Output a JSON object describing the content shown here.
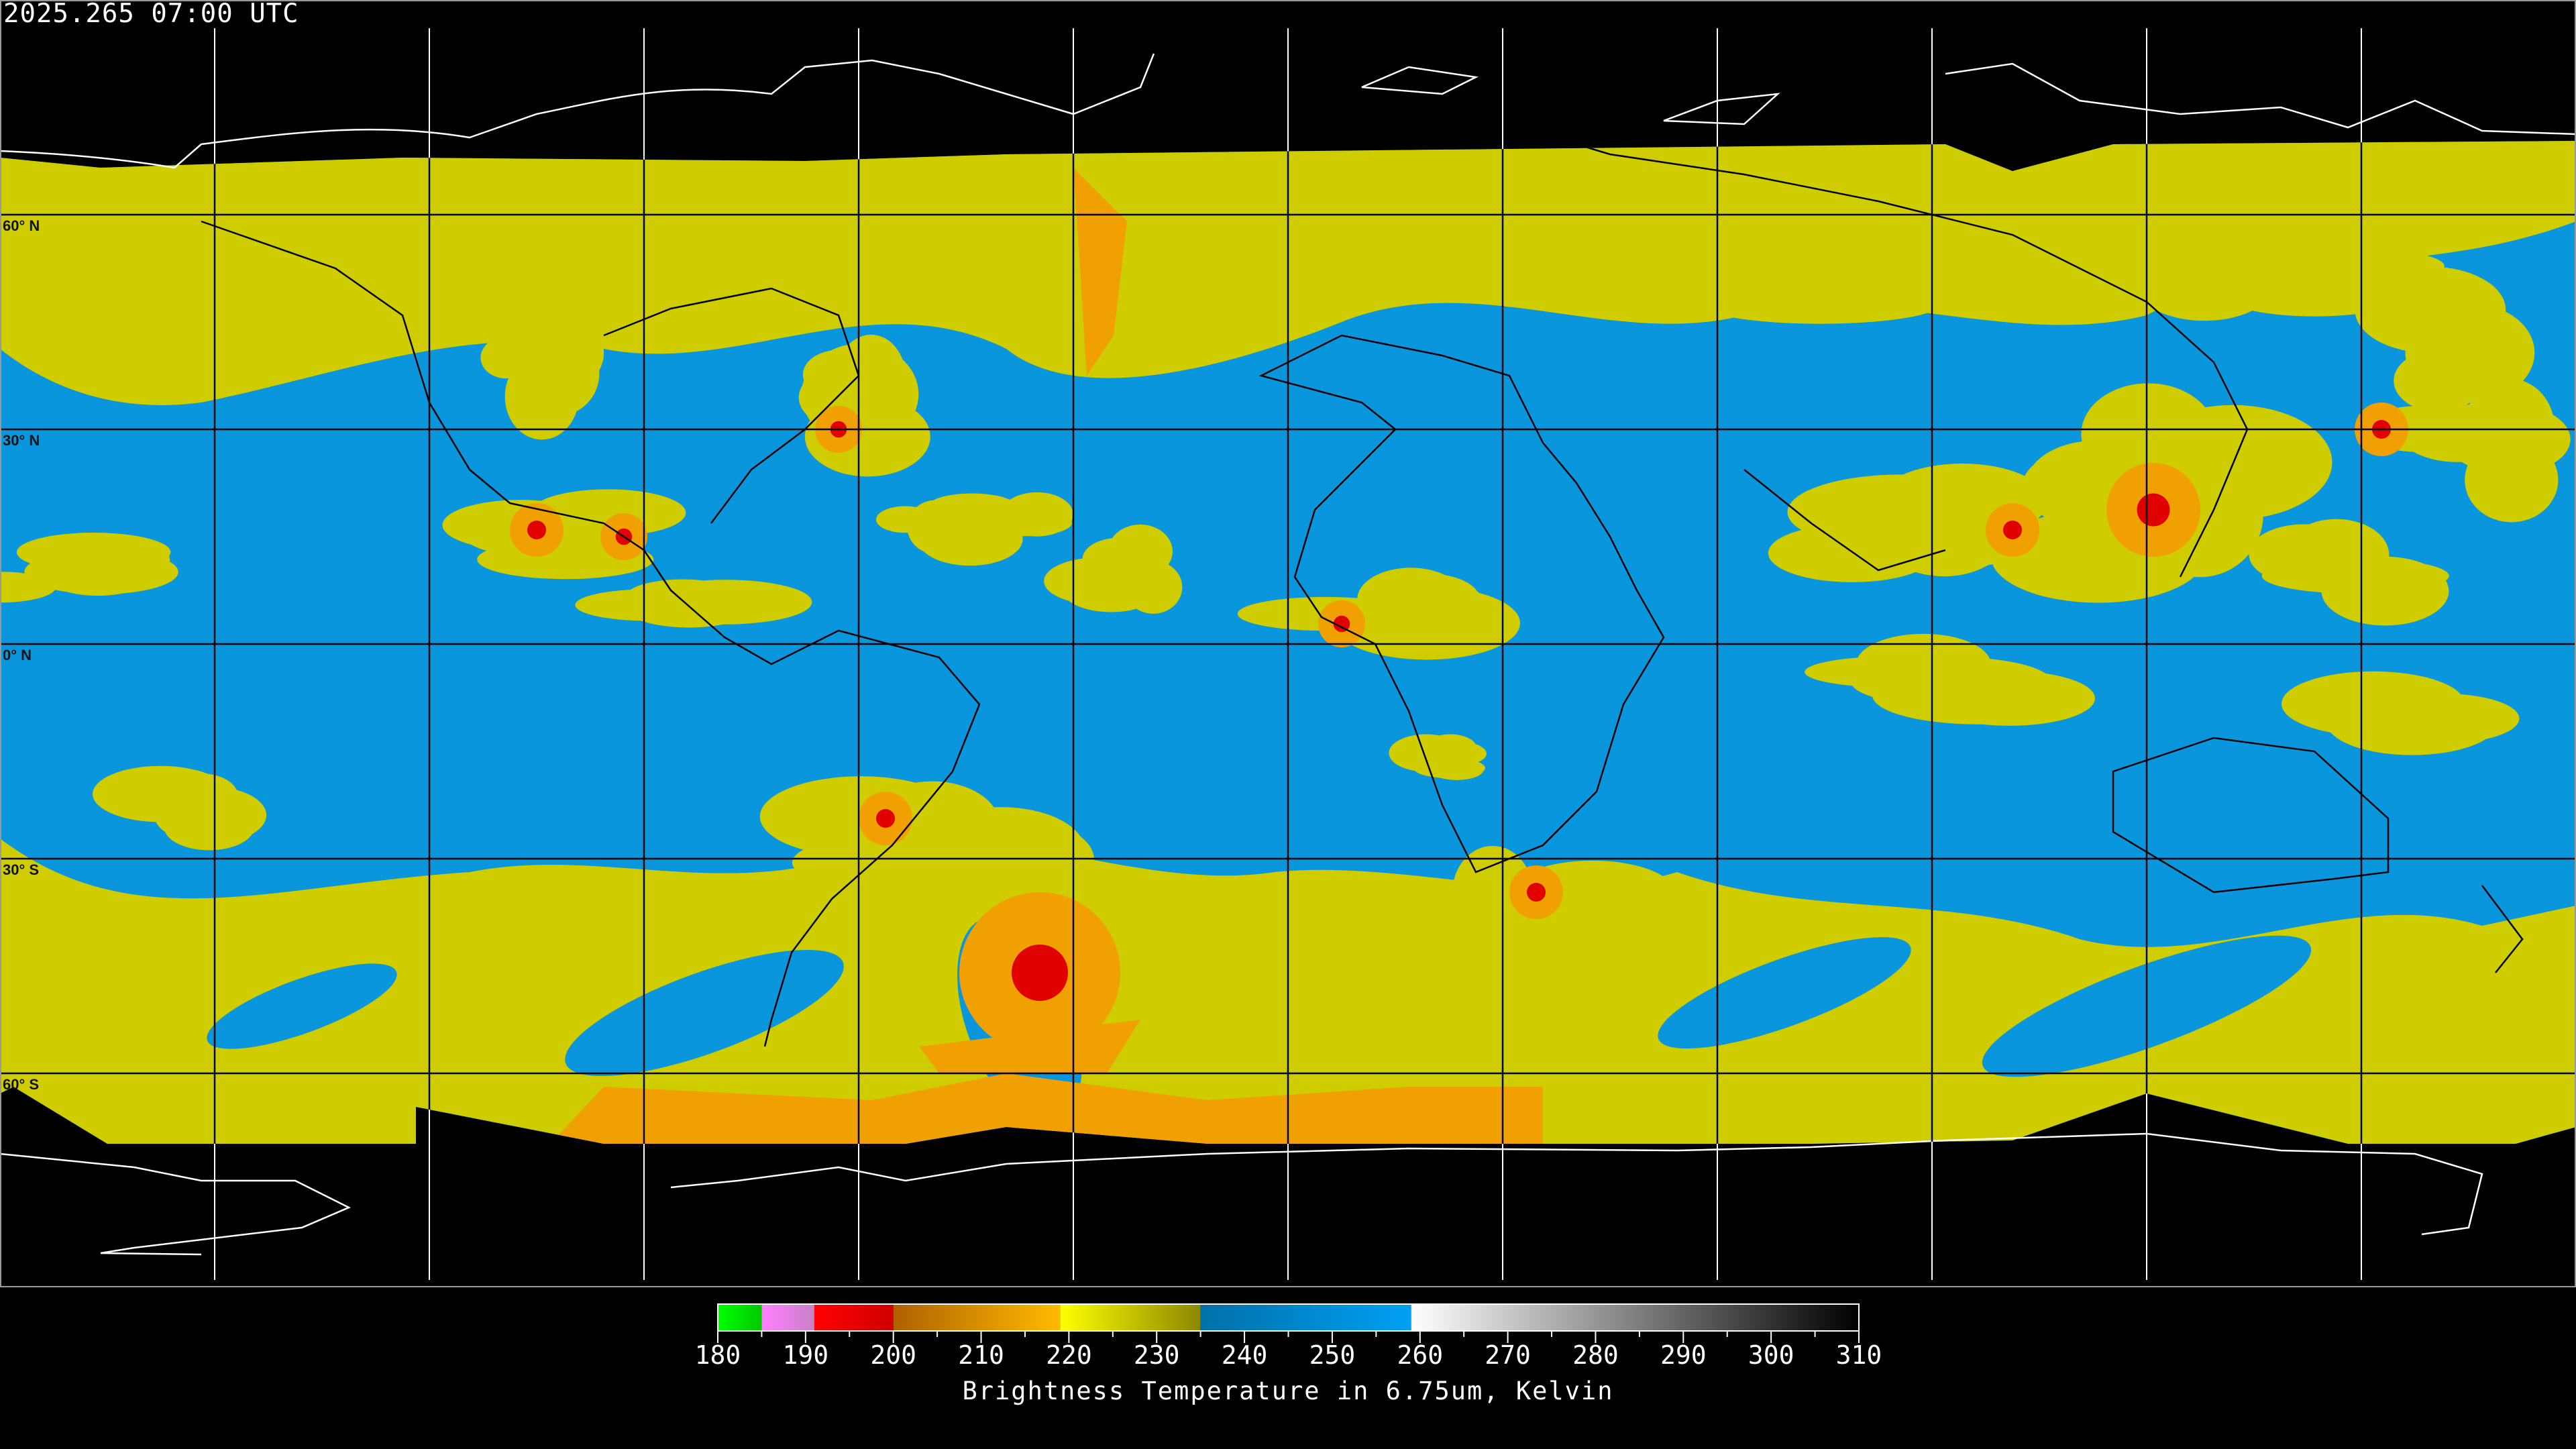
{
  "header": {
    "timestamp": "2025.265 07:00 UTC"
  },
  "map": {
    "projection": "equirectangular",
    "grid_spacing_deg": 30,
    "latitude_labels": [
      "60° N",
      "30° N",
      "0° N",
      "30° S",
      "60° S"
    ],
    "colors": {
      "background": "#000000",
      "clear_air": "#0a96dc",
      "moist": "#cfcc00",
      "cold_cloud": "#f0a000",
      "very_cold": "#e00000",
      "coastline_on_data": "#000000",
      "coastline_off_data": "#ffffff"
    }
  },
  "colorbar": {
    "title": "Brightness Temperature in 6.75um, Kelvin",
    "min": 180,
    "max": 310,
    "tick_labels": [
      "180",
      "190",
      "200",
      "210",
      "220",
      "230",
      "240",
      "250",
      "260",
      "270",
      "280",
      "290",
      "300",
      "310"
    ],
    "segments": [
      {
        "from": 180,
        "to": 185,
        "colors": [
          "#00ff00",
          "#00c800"
        ]
      },
      {
        "from": 185,
        "to": 191,
        "colors": [
          "#ff80ff",
          "#c880c8"
        ]
      },
      {
        "from": 191,
        "to": 200,
        "colors": [
          "#ff0000",
          "#d00000"
        ]
      },
      {
        "from": 200,
        "to": 219,
        "colors": [
          "#b06000",
          "#ffbb00"
        ]
      },
      {
        "from": 219,
        "to": 235,
        "colors": [
          "#ffff00",
          "#8c8800"
        ]
      },
      {
        "from": 235,
        "to": 259,
        "colors": [
          "#0070a8",
          "#00a0f4"
        ]
      },
      {
        "from": 259,
        "to": 310,
        "colors": [
          "#ffffff",
          "#000000"
        ]
      }
    ]
  }
}
